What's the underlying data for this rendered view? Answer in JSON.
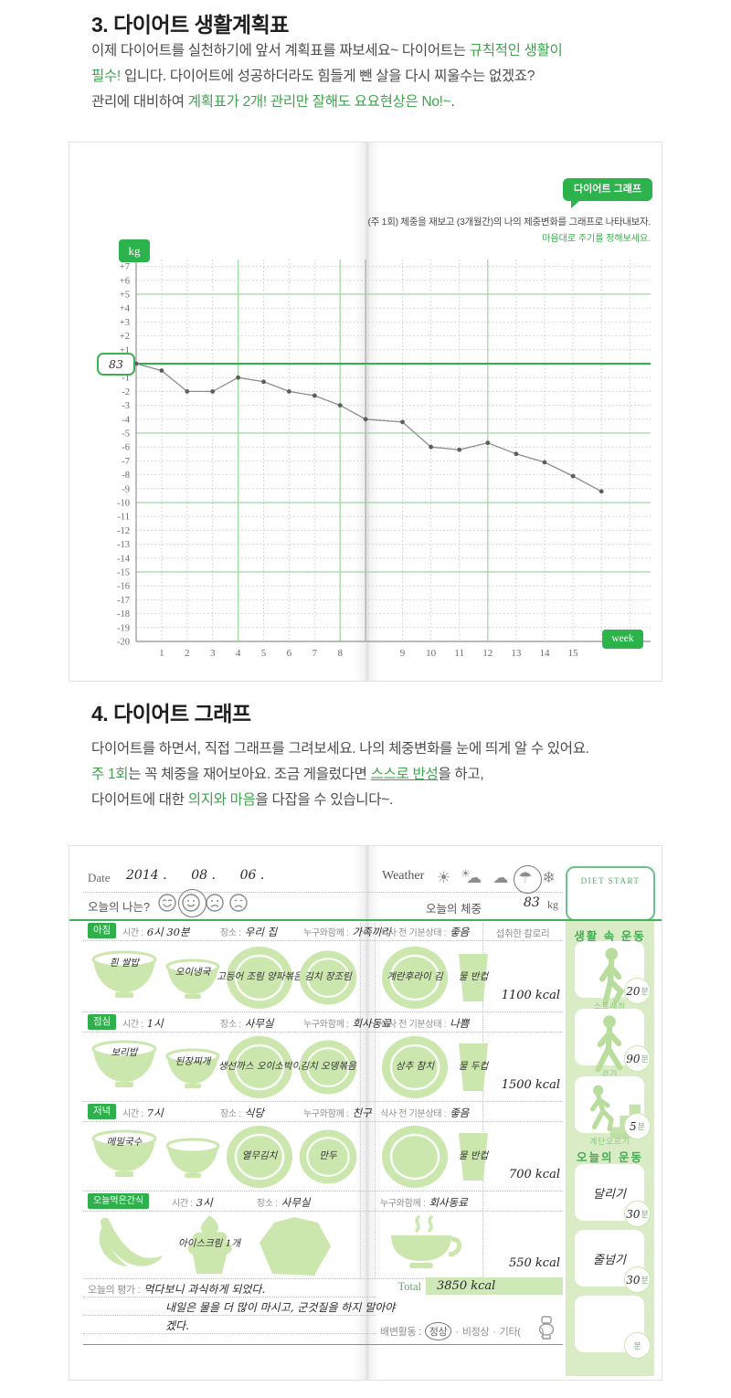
{
  "section3": {
    "heading": "3. 다이어트 생활계획표",
    "p1a": "이제 다이어트를 실천하기에 앞서 계획표를 짜보세요~ 다이어트는 ",
    "p1b": "규칙적인 생활이",
    "p2a": "필수!",
    "p2b": " 입니다. 다이어트에 성공하더라도 힘들게 뺀 살을 다시 찌울수는 없겠죠?",
    "p3a": "관리에 대비하여 ",
    "p3b": "계획표가 2개! 관리만 잘해도 요요현상은 No!~",
    "p3c": "."
  },
  "chart_data": {
    "type": "line",
    "bubble_label": "다이어트 그래프",
    "instruction": "(주 1회) 체중을 재보고 (3개월간)의 나의 체중변화를 그래프로 나타내보자.",
    "note": "마음대로 주기를 정해보세요.",
    "unit_badge": "kg",
    "x_badge": "week",
    "start_weight": "83",
    "ylabel": "kg change from 83kg",
    "xlabel": "week",
    "ylim": [
      -20,
      7
    ],
    "green_rule_interval": 5,
    "highlight_weeks": [
      4,
      8,
      12
    ],
    "grid": true,
    "points": [
      {
        "week": 0,
        "delta": 0
      },
      {
        "week": 1,
        "delta": -0.5
      },
      {
        "week": 2,
        "delta": -2
      },
      {
        "week": 3,
        "delta": -2
      },
      {
        "week": 4,
        "delta": -1
      },
      {
        "week": 5,
        "delta": -1.3
      },
      {
        "week": 6,
        "delta": -2
      },
      {
        "week": 7,
        "delta": -2.3
      },
      {
        "week": 8,
        "delta": -3
      },
      {
        "week": null,
        "delta": -4
      },
      {
        "week": 9,
        "delta": -4.2
      },
      {
        "week": 10,
        "delta": -6
      },
      {
        "week": 11,
        "delta": -6.2
      },
      {
        "week": 12,
        "delta": -5.7
      },
      {
        "week": 13,
        "delta": -6.5
      },
      {
        "week": 14,
        "delta": -7.1
      },
      {
        "week": 15,
        "delta": -8.1
      },
      {
        "week": null,
        "delta": -9.2
      }
    ]
  },
  "section4": {
    "heading": "4. 다이어트 그래프",
    "p1": "다이어트를 하면서, 직접 그래프를 그려보세요. 나의 체중변화를 눈에 띄게 알 수 있어요.",
    "p2a": "주 1회",
    "p2b": "는 꼭 체중을 재어보아요. 조금 게을렀다면 ",
    "p2c": "스스로 반성",
    "p2d": "을 하고,",
    "p3a": "다이어트에 대한 ",
    "p3b": "의지와 마음",
    "p3c": "을 다잡을 수 있습니다~."
  },
  "diary": {
    "date_label": "Date",
    "date_value": "2014 .      08 .      06 .",
    "mood_label": "오늘의 나는?",
    "mood_icons": [
      "grin-face-icon",
      "smile-face-icon",
      "frown-face-icon",
      "sad-face-icon"
    ],
    "mood_selected_index": 1,
    "weather_label": "Weather",
    "weather_icons": [
      "sun-icon",
      "sun-behind-cloud-icon",
      "cloud-icon",
      "umbrella-icon",
      "snowflake-icon"
    ],
    "weather_selected": "umbrella-icon",
    "weight_label": "오늘의 체중",
    "weight_value": "83",
    "weight_unit": "kg",
    "diet_start_label": "DIET START",
    "labels": {
      "time": "시간 :",
      "place": "장소 :",
      "companion": "누구와함께 :",
      "mood": "식사 전 기분상태 :",
      "kcal_header": "섭취한 칼로리"
    },
    "meals": [
      {
        "name": "아침",
        "time": "6시 30분",
        "place": "우리 집",
        "companion": "가족끼리",
        "mood": "좋음",
        "kcal": "1100 kcal",
        "foods": [
          "흰 쌀밥",
          "오이냉국",
          "고등어 조림 양파볶음",
          "김치 장조림"
        ],
        "sides": [
          "계란후라이 김",
          "물 반컵"
        ]
      },
      {
        "name": "점심",
        "time": "1시",
        "place": "사무실",
        "companion": "회사동료",
        "mood": "나쁨",
        "kcal": "1500 kcal",
        "foods": [
          "보리밥",
          "된장찌개",
          "생선까스 오이소박이",
          "김치 오뎅볶음"
        ],
        "sides": [
          "상추 참치",
          "물 두컵"
        ]
      },
      {
        "name": "저녁",
        "time": "7시",
        "place": "식당",
        "companion": "친구",
        "mood": "좋음",
        "kcal": "700 kcal",
        "foods": [
          "메밀국수",
          "",
          "열무김치",
          "만두"
        ],
        "sides": [
          "",
          "물 반컵"
        ]
      }
    ],
    "snack": {
      "name": "오늘먹은간식",
      "time": "3시",
      "place": "사무실",
      "companion": "회사동료",
      "kcal": "550 kcal",
      "foods": [
        "",
        "아이스크림 1개",
        ""
      ]
    },
    "evaluation": {
      "label": "오늘의 평가 :",
      "line1": "먹다보니 과식하게 되었다.",
      "line2": "내일은 물을 더 많이 마시고, 군것질을 하지 말아야",
      "line3": "겠다."
    },
    "total_label": "Total",
    "total_value": "3850 kcal",
    "bowel": {
      "label": "배변활동 :",
      "normal": "정상",
      "sep": "·",
      "abnormal": "비정상",
      "etc": "기타(        )",
      "selected": "정상"
    },
    "exercise": {
      "header": "생활 속 운동",
      "items": [
        {
          "name": "스트레칭",
          "minutes": "20"
        },
        {
          "name": "걷기",
          "minutes": "90"
        },
        {
          "name": "계단오르기",
          "minutes": "5"
        }
      ],
      "today_header": "오늘의 운동",
      "today": [
        {
          "name": "달리기",
          "minutes": "30"
        },
        {
          "name": "줄넘기",
          "minutes": "30"
        },
        {
          "name": "",
          "minutes": ""
        }
      ],
      "minute_suffix": "분"
    }
  }
}
